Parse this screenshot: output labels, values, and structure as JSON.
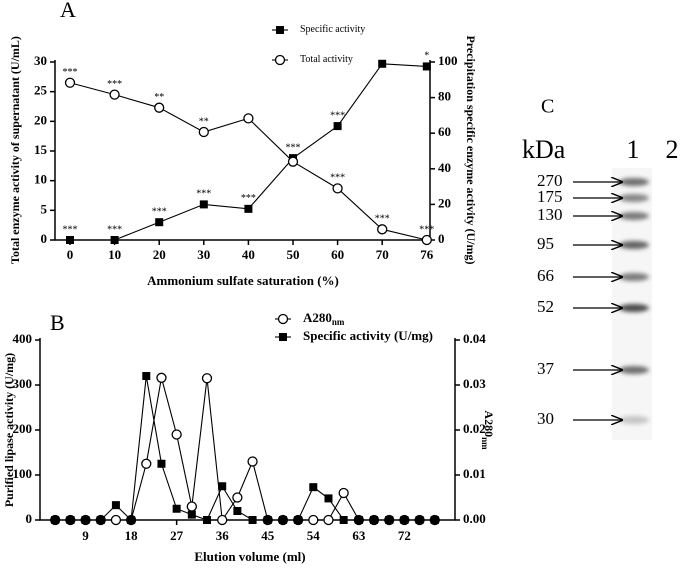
{
  "chart_data": [
    {
      "type": "line",
      "panel": "A",
      "categories": [
        "0",
        "10",
        "20",
        "30",
        "40",
        "50",
        "60",
        "70",
        "76"
      ],
      "xlabel": "Ammonium sulfate saturation (%)",
      "ylabel": "Total enzyme activity of supernatant (U/mL)",
      "y2label": "Precipitation specific enzyme activity (U/mg)",
      "ylim": [
        0,
        30
      ],
      "yticks": [
        0,
        5,
        10,
        15,
        20,
        25,
        30
      ],
      "y2lim": [
        0,
        100
      ],
      "y2ticks": [
        0,
        20,
        40,
        60,
        80,
        100
      ],
      "series": [
        {
          "name": "Specific activity",
          "marker": "square",
          "color": "#000000",
          "axis": "y2",
          "values": [
            0,
            0,
            10,
            20,
            17.5,
            46,
            64,
            99,
            97.5
          ],
          "significance": [
            "***",
            "***",
            "***",
            "***",
            "***",
            "***",
            "***",
            null,
            "*"
          ]
        },
        {
          "name": "Total activity",
          "marker": "circle",
          "color": "#000000",
          "axis": "y",
          "values": [
            26.5,
            24.5,
            22.3,
            18.2,
            20.5,
            13.2,
            8.7,
            1.8,
            0
          ],
          "significance": [
            "***",
            "***",
            "**",
            "**",
            null,
            null,
            "***",
            "***",
            "***"
          ]
        }
      ]
    },
    {
      "type": "line",
      "panel": "B",
      "x": [
        3,
        6,
        9,
        12,
        15,
        18,
        21,
        24,
        27,
        30,
        33,
        36,
        39,
        42,
        45,
        48,
        51,
        54,
        57,
        60,
        63,
        66,
        69,
        72,
        75,
        78
      ],
      "xlim": [
        0,
        82
      ],
      "xticks": [
        9,
        18,
        27,
        36,
        45,
        54,
        63,
        72
      ],
      "xlabel": "Elution volume (ml)",
      "ylabel": "Purified lipase activity (U/mg)",
      "y2label": "A280",
      "y2label_subscript": "nm",
      "ylim": [
        0,
        400
      ],
      "yticks": [
        0,
        100,
        200,
        300,
        400
      ],
      "y2lim": [
        0,
        0.04
      ],
      "y2ticks": [
        {
          "value": 0,
          "label": "0.00"
        },
        {
          "value": 0.01,
          "label": "0.01"
        },
        {
          "value": 0.02,
          "label": "0.02"
        },
        {
          "value": 0.03,
          "label": "0.03"
        },
        {
          "value": 0.04,
          "label": "0.04"
        }
      ],
      "series": [
        {
          "name": "A280",
          "name_subscript": "nm",
          "marker": "circle",
          "color": "#000000",
          "axis": "y2",
          "values": [
            0,
            0,
            0,
            0,
            0,
            0,
            0.0125,
            0.0316,
            0.019,
            0.003,
            0.0315,
            0,
            0.005,
            0.013,
            0,
            0,
            0,
            0,
            0,
            0.006,
            0,
            0,
            0,
            0,
            0,
            0
          ]
        },
        {
          "name": "Specific activity (U/mg)",
          "marker": "square",
          "color": "#000000",
          "axis": "y",
          "values": [
            0,
            0,
            0,
            0,
            33,
            0,
            320,
            125,
            25,
            12,
            0,
            75,
            20,
            0,
            0,
            0,
            0,
            73,
            48,
            0,
            0,
            0,
            0,
            0,
            0,
            0
          ]
        }
      ]
    },
    {
      "type": "gel",
      "panel": "C",
      "unit": "kDa",
      "lanes": [
        "1",
        "2"
      ],
      "markers": [
        270,
        175,
        130,
        95,
        66,
        52,
        37,
        30
      ]
    }
  ]
}
